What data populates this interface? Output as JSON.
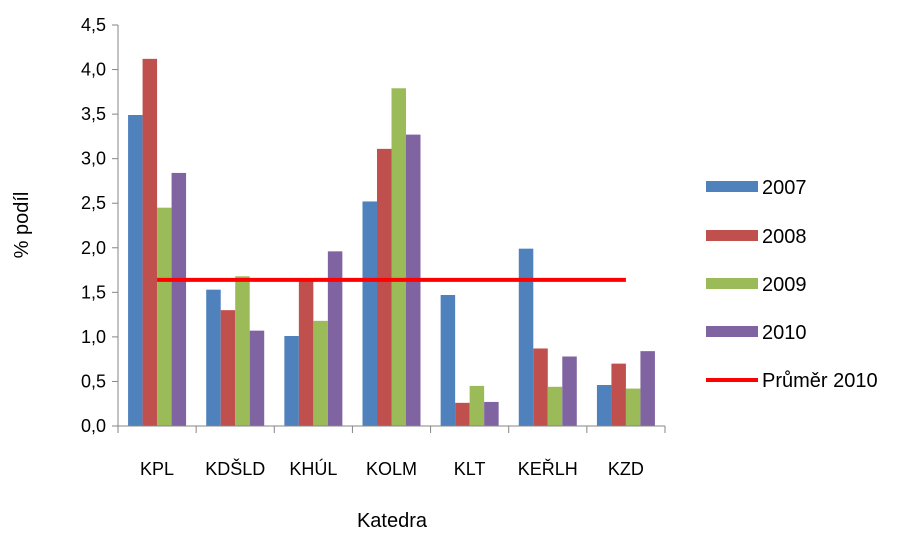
{
  "chart_data": {
    "type": "bar",
    "categories": [
      "KPL",
      "KDŠLD",
      "KHÚL",
      "KOLM",
      "KLT",
      "KEŘLH",
      "KZD"
    ],
    "series": [
      {
        "name": "2007",
        "color": "#4F81BD",
        "values": [
          3.49,
          1.53,
          1.01,
          2.52,
          1.47,
          1.99,
          0.46
        ]
      },
      {
        "name": "2008",
        "color": "#C0504D",
        "values": [
          4.12,
          1.3,
          1.64,
          3.11,
          0.26,
          0.87,
          0.7
        ]
      },
      {
        "name": "2009",
        "color": "#9BBB59",
        "values": [
          2.45,
          1.68,
          1.18,
          3.79,
          0.45,
          0.44,
          0.42
        ]
      },
      {
        "name": "2010",
        "color": "#8064A2",
        "values": [
          2.84,
          1.07,
          1.96,
          3.27,
          0.27,
          0.78,
          0.84
        ]
      }
    ],
    "reference_line": {
      "name": "Průměr 2010",
      "value": 1.64,
      "color": "#FF0000"
    },
    "ylim": [
      0,
      4.5
    ],
    "yticks": [
      "0,0",
      "0,5",
      "1,0",
      "1,5",
      "2,0",
      "2,5",
      "3,0",
      "3,5",
      "4,0",
      "4,5"
    ],
    "xlabel": "Katedra",
    "ylabel": "% podíl",
    "grid": false,
    "legend_position": "right"
  }
}
